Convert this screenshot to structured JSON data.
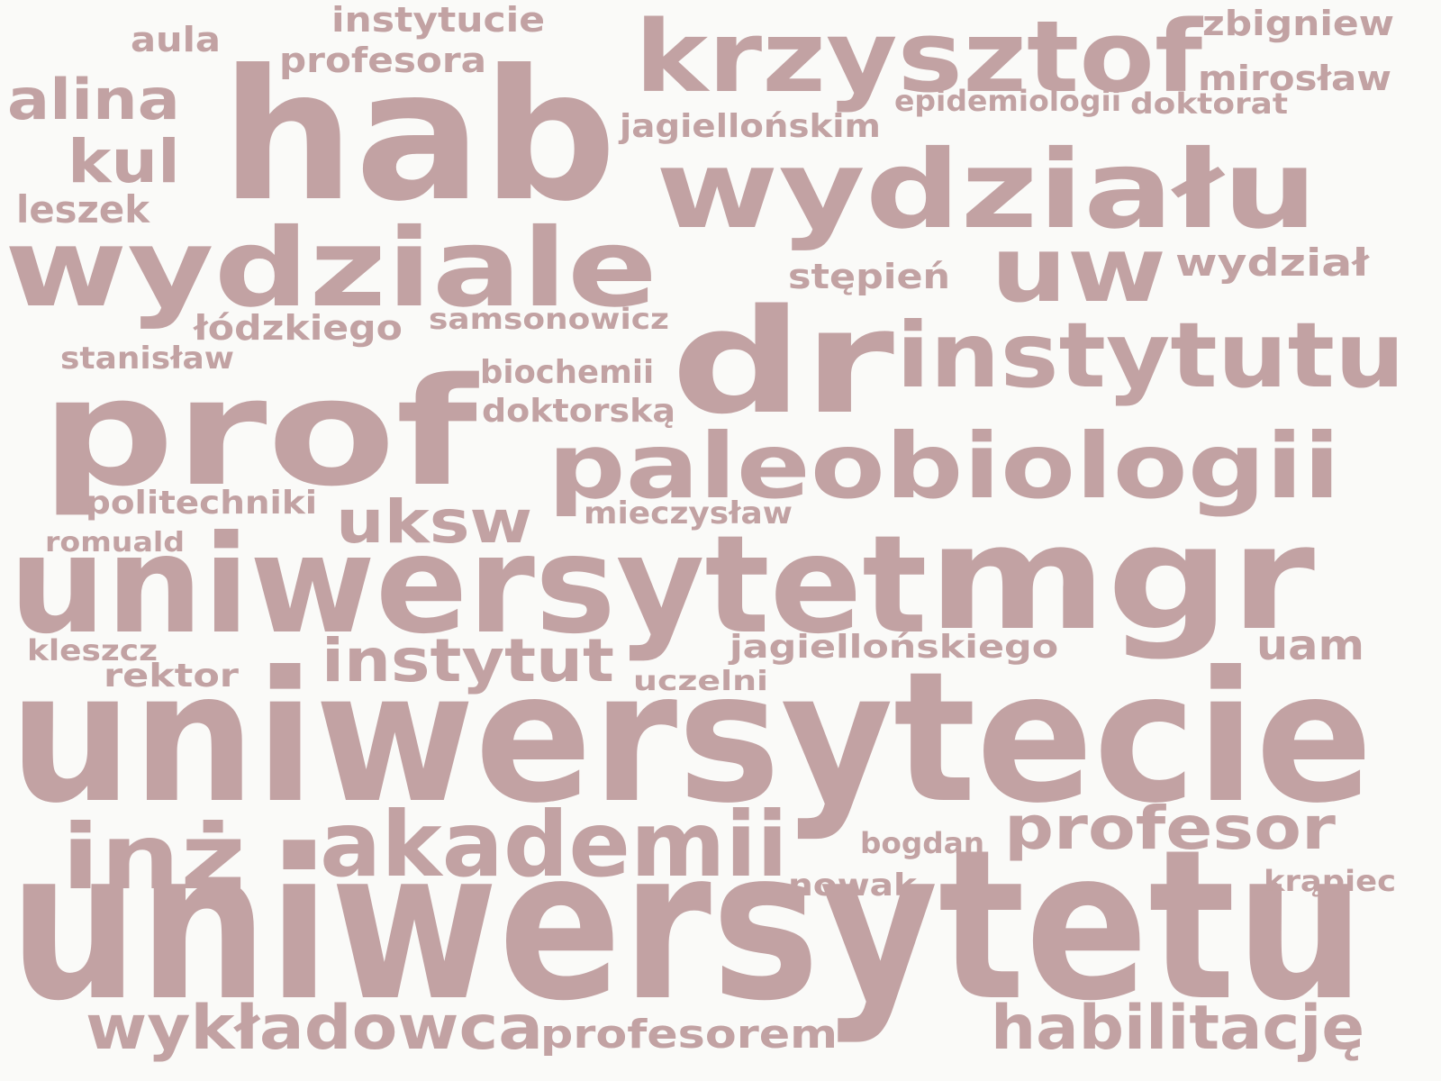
{
  "word_color": "#c2a2a3",
  "background_color": "#fafaf8",
  "words": [
    "uniwersytetu",
    "uniwersytecie",
    "hab",
    "uniwersytet",
    "prof",
    "dr",
    "mgr",
    "wydziale",
    "wydziału",
    "krzysztof",
    "paleobiologii",
    "instytutu",
    "akademii",
    "inż",
    "uw",
    "habilitację",
    "wykładowca",
    "profesor",
    "instytut",
    "uksw",
    "kul",
    "alina",
    "wydział",
    "profesorem",
    "stępień",
    "jagiellońskim",
    "jagiellońskiego",
    "zbigniew",
    "mirosław",
    "uam",
    "leszek",
    "instytucie",
    "profesora",
    "aula",
    "łódzkiego",
    "stanisław",
    "politechniki",
    "rektor",
    "samsonowicz",
    "biochemii",
    "doktorską",
    "mieczysław",
    "romuald",
    "kleszcz",
    "doktorat",
    "epidemiologii",
    "uczelni",
    "bogdan",
    "nowak",
    "krąpiec"
  ]
}
